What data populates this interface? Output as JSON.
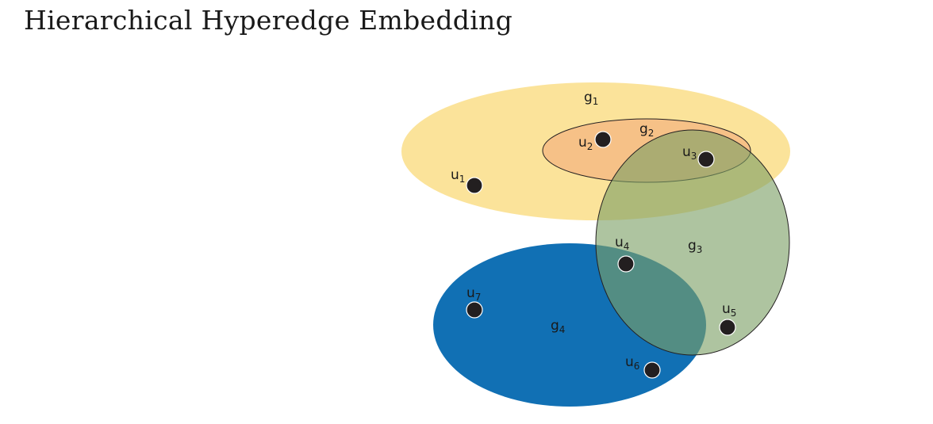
{
  "title": "Hierarchical Hyperedge Embedding",
  "colors": {
    "g1": "#fbe195",
    "g2": "#f4bb84",
    "g3": "#8fae7a",
    "g4": "#1170b4",
    "node": "#231f20"
  },
  "hyperedges": [
    {
      "id": "g1",
      "base": "g",
      "sub": "1"
    },
    {
      "id": "g2",
      "base": "g",
      "sub": "2"
    },
    {
      "id": "g3",
      "base": "g",
      "sub": "3"
    },
    {
      "id": "g4",
      "base": "g",
      "sub": "4"
    }
  ],
  "nodes": [
    {
      "id": "u1",
      "base": "u",
      "sub": "1"
    },
    {
      "id": "u2",
      "base": "u",
      "sub": "2"
    },
    {
      "id": "u3",
      "base": "u",
      "sub": "3"
    },
    {
      "id": "u4",
      "base": "u",
      "sub": "4"
    },
    {
      "id": "u5",
      "base": "u",
      "sub": "5"
    },
    {
      "id": "u6",
      "base": "u",
      "sub": "6"
    },
    {
      "id": "u7",
      "base": "u",
      "sub": "7"
    }
  ]
}
